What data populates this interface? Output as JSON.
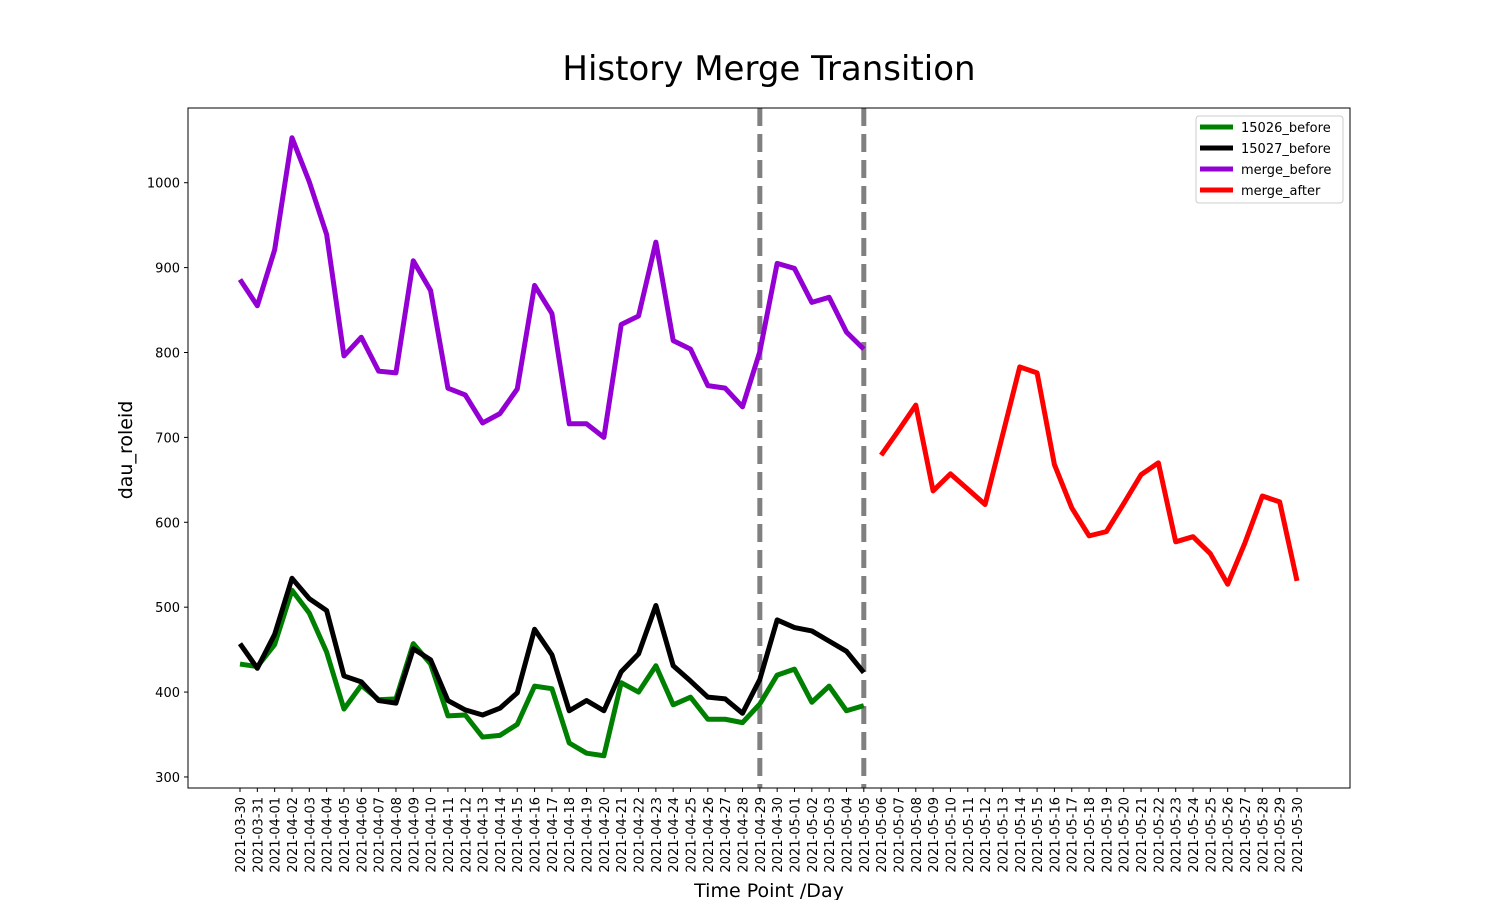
{
  "chart_data": {
    "type": "line",
    "title": "History Merge Transition",
    "xlabel": "Time Point /Day",
    "ylabel": "dau_roleid",
    "categories": [
      "2021-03-30",
      "2021-03-31",
      "2021-04-01",
      "2021-04-02",
      "2021-04-03",
      "2021-04-04",
      "2021-04-05",
      "2021-04-06",
      "2021-04-07",
      "2021-04-08",
      "2021-04-09",
      "2021-04-10",
      "2021-04-11",
      "2021-04-12",
      "2021-04-13",
      "2021-04-14",
      "2021-04-15",
      "2021-04-16",
      "2021-04-17",
      "2021-04-18",
      "2021-04-19",
      "2021-04-20",
      "2021-04-21",
      "2021-04-22",
      "2021-04-23",
      "2021-04-24",
      "2021-04-25",
      "2021-04-26",
      "2021-04-27",
      "2021-04-28",
      "2021-04-29",
      "2021-04-30",
      "2021-05-01",
      "2021-05-02",
      "2021-05-03",
      "2021-05-04",
      "2021-05-05",
      "2021-05-06",
      "2021-05-07",
      "2021-05-08",
      "2021-05-09",
      "2021-05-10",
      "2021-05-11",
      "2021-05-12",
      "2021-05-13",
      "2021-05-14",
      "2021-05-15",
      "2021-05-16",
      "2021-05-17",
      "2021-05-18",
      "2021-05-19",
      "2021-05-20",
      "2021-05-21",
      "2021-05-22",
      "2021-05-23",
      "2021-05-24",
      "2021-05-25",
      "2021-05-26",
      "2021-05-27",
      "2021-05-28",
      "2021-05-29",
      "2021-05-30"
    ],
    "series": [
      {
        "name": "15026_before",
        "color": "#008000",
        "values": [
          433,
          430,
          456,
          520,
          493,
          447,
          380,
          408,
          391,
          392,
          457,
          433,
          372,
          373,
          347,
          349,
          362,
          407,
          404,
          340,
          328,
          325,
          411,
          400,
          431,
          385,
          394,
          368,
          368,
          364,
          386,
          420,
          427,
          388,
          407,
          378,
          384,
          null,
          null,
          null,
          null,
          null,
          null,
          null,
          null,
          null,
          null,
          null,
          null,
          null,
          null,
          null,
          null,
          null,
          null,
          null,
          null,
          null,
          null,
          null,
          null,
          null
        ]
      },
      {
        "name": "15027_before",
        "color": "#000000",
        "values": [
          457,
          428,
          468,
          534,
          510,
          496,
          419,
          412,
          390,
          387,
          451,
          438,
          390,
          379,
          373,
          381,
          399,
          474,
          444,
          378,
          390,
          378,
          424,
          445,
          502,
          431,
          413,
          394,
          392,
          375,
          415,
          485,
          476,
          472,
          460,
          448,
          423,
          null,
          null,
          null,
          null,
          null,
          null,
          null,
          null,
          null,
          null,
          null,
          null,
          null,
          null,
          null,
          null,
          null,
          null,
          null,
          null,
          null,
          null,
          null,
          null,
          null
        ]
      },
      {
        "name": "merge_before",
        "color": "#9400d3",
        "values": [
          886,
          855,
          921,
          1053,
          1001,
          939,
          796,
          818,
          778,
          776,
          908,
          873,
          758,
          750,
          717,
          728,
          757,
          879,
          846,
          716,
          716,
          700,
          833,
          843,
          930,
          814,
          804,
          761,
          758,
          736,
          801,
          905,
          899,
          859,
          865,
          824,
          804,
          null,
          null,
          null,
          null,
          null,
          null,
          null,
          null,
          null,
          null,
          null,
          null,
          null,
          null,
          null,
          null,
          null,
          null,
          null,
          null,
          null,
          null,
          null,
          null,
          null
        ]
      },
      {
        "name": "merge_after",
        "color": "#ff0000",
        "values": [
          null,
          null,
          null,
          null,
          null,
          null,
          null,
          null,
          null,
          null,
          null,
          null,
          null,
          null,
          null,
          null,
          null,
          null,
          null,
          null,
          null,
          null,
          null,
          null,
          null,
          null,
          null,
          null,
          null,
          null,
          null,
          null,
          null,
          null,
          null,
          null,
          null,
          679,
          708,
          738,
          637,
          657,
          639,
          621,
          702,
          783,
          776,
          668,
          617,
          584,
          589,
          622,
          656,
          670,
          577,
          583,
          563,
          527,
          576,
          631,
          624,
          531
        ]
      }
    ],
    "vlines": [
      "2021-04-29",
      "2021-05-05"
    ],
    "vline_color": "#808080",
    "ylim": [
      287,
      1088
    ],
    "yticks": [
      300,
      400,
      500,
      600,
      700,
      800,
      900,
      1000
    ],
    "grid": false,
    "legend": "upper right"
  }
}
